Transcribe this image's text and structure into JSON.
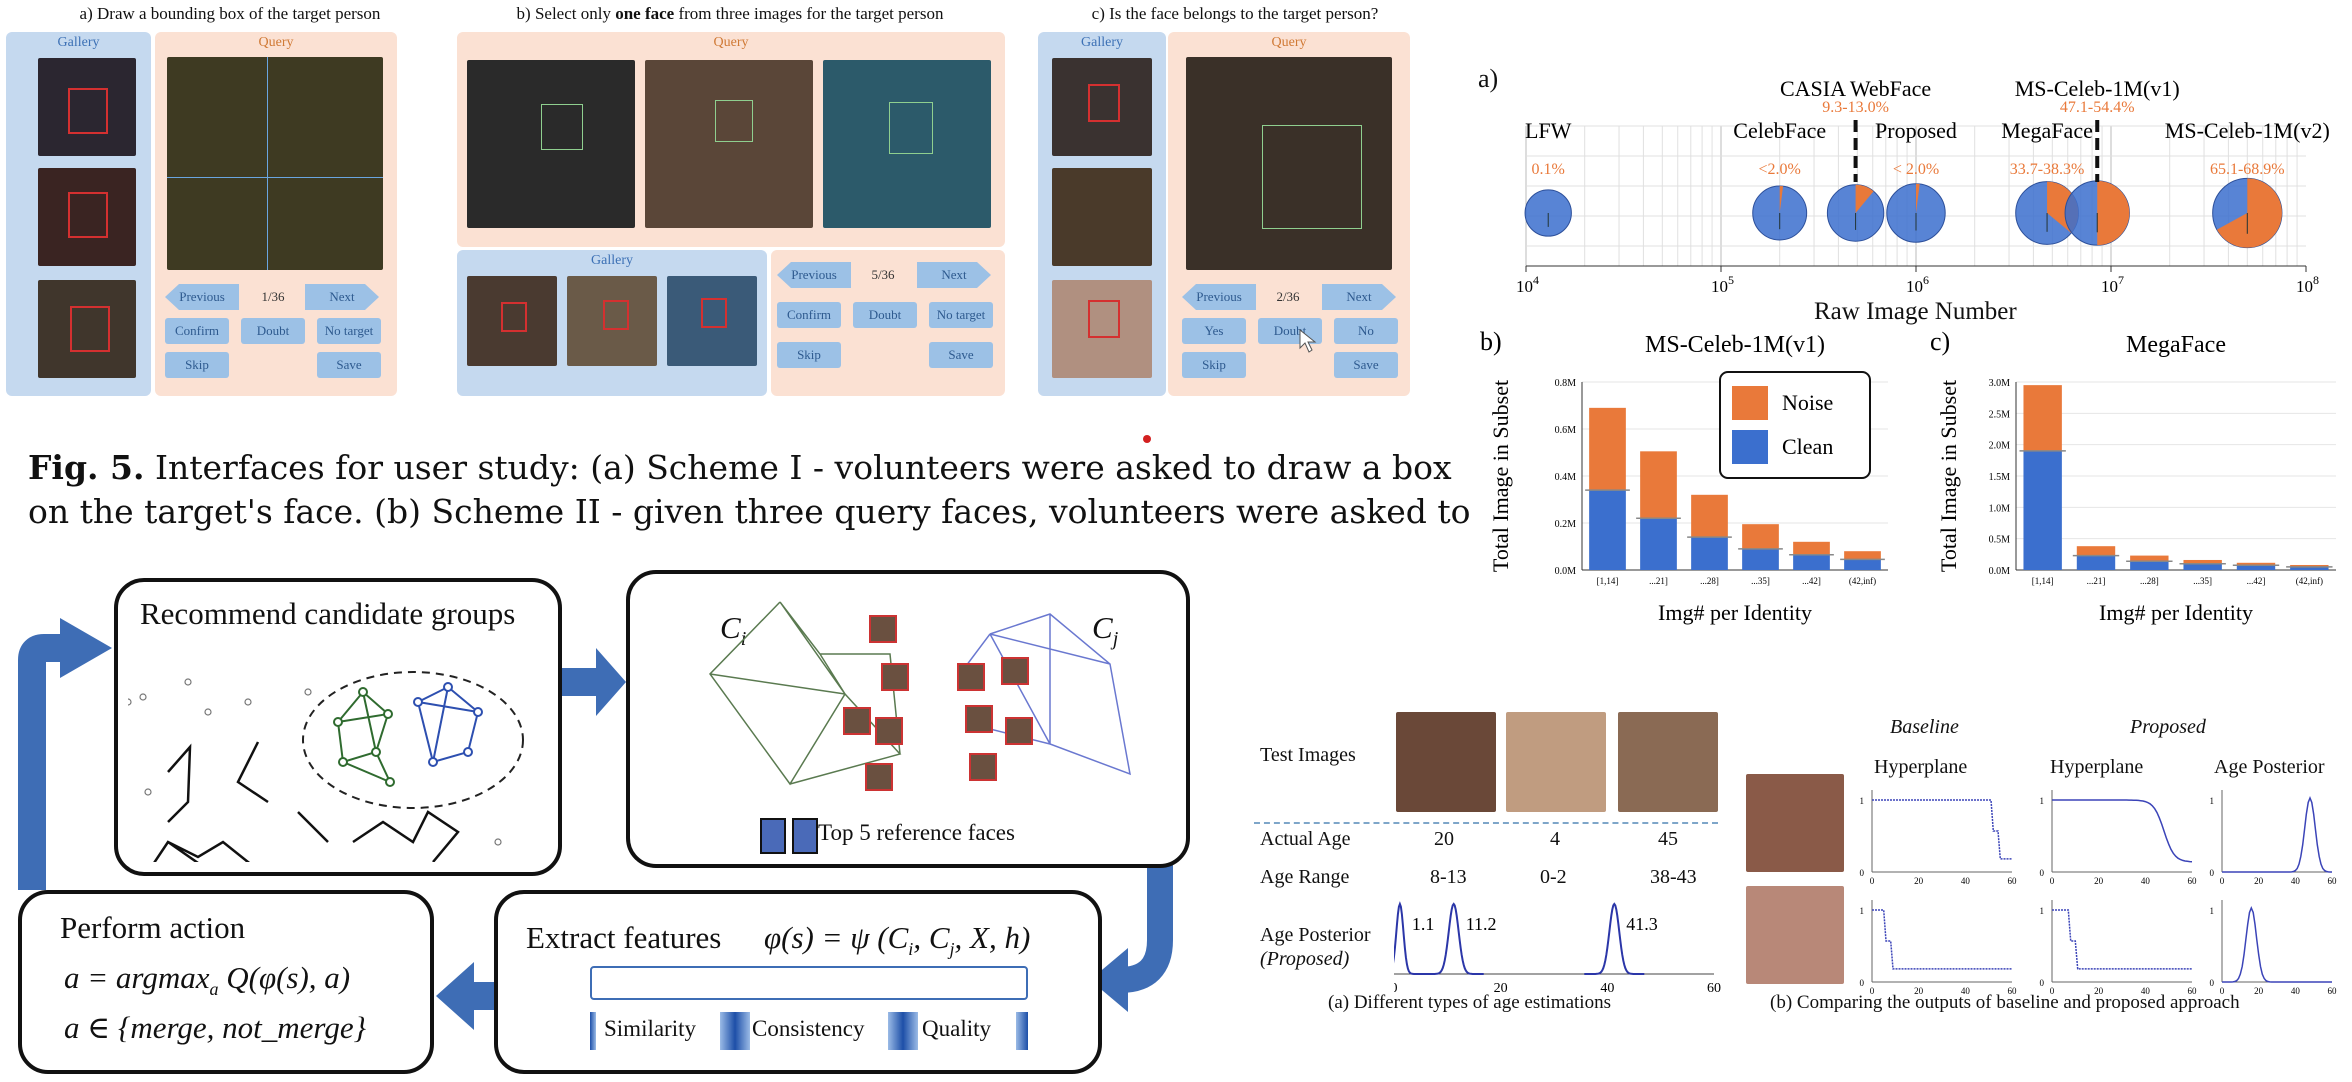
{
  "fig5_panels": {
    "a": {
      "title": "a) Draw a bounding box of the target person",
      "gallery_label": "Gallery",
      "query_label": "Query",
      "prev": "Previous",
      "counter": "1/36",
      "next": "Next",
      "confirm": "Confirm",
      "doubt": "Doubt",
      "no_target": "No target",
      "skip": "Skip",
      "save": "Save"
    },
    "b": {
      "title_pre": "b) Select only ",
      "title_bold": "one face",
      "title_post": " from three images for the target person",
      "query_label": "Query",
      "gallery_label": "Gallery",
      "prev": "Previous",
      "counter": "5/36",
      "next": "Next",
      "confirm": "Confirm",
      "doubt": "Doubt",
      "no_target": "No target",
      "skip": "Skip",
      "save": "Save"
    },
    "c": {
      "title": "c) Is the face belongs to the target person?",
      "gallery_label": "Gallery",
      "query_label": "Query",
      "prev": "Previous",
      "counter": "2/36",
      "next": "Next",
      "yes": "Yes",
      "doubt": "Doubt",
      "no": "No",
      "skip": "Skip",
      "save": "Save"
    }
  },
  "caption": {
    "label": "Fig. 5.",
    "line1": " Interfaces for user study: (a) Scheme I - volunteers were asked to draw a box",
    "line2": "on the target's face. (b) Scheme II - given three query faces, volunteers were asked to"
  },
  "pipeline": {
    "recommend": "Recommend candidate groups",
    "ci": "C",
    "ci_sub": "i",
    "cj": "C",
    "cj_sub": "j",
    "top5": "Top 5 reference faces",
    "perform": "Perform action",
    "eq1": "a = argmax",
    "eq1_sub": "a",
    "eq1_rest": " Q(φ(s), a)",
    "eq2": "a ∈ {merge, not_merge}",
    "extract": "Extract features",
    "phi": "φ(s) = ψ (C",
    "phi_sub_i": "i",
    "phi_mid": ", C",
    "phi_sub_j": "j",
    "phi_end": ", X, h)",
    "sim": "Similarity",
    "cons": "Consistency",
    "qual": "Quality"
  },
  "chart_data": [
    {
      "id": "a",
      "type": "scatter",
      "panel_label": "a)",
      "xlabel": "Raw Image Number",
      "xscale": "log",
      "xlim": [
        10000,
        100000000
      ],
      "x_ticks": [
        "10",
        "10",
        "10",
        "10",
        "10"
      ],
      "x_tick_exps": [
        "4",
        "5",
        "6",
        "7",
        "8"
      ],
      "points": [
        {
          "name": "LFW",
          "x": 13000,
          "noise": "0.1%",
          "noise_frac": 0.001
        },
        {
          "name": "CelebFace",
          "x": 200000,
          "noise": "<2.0%",
          "noise_frac": 0.02
        },
        {
          "name": "CASIA WebFace",
          "x": 490000,
          "noise": "9.3-13.0%",
          "noise_frac": 0.11
        },
        {
          "name": "Proposed",
          "x": 1000000,
          "noise": "< 2.0%",
          "noise_frac": 0.02
        },
        {
          "name": "MegaFace",
          "x": 4700000,
          "noise": "33.7-38.3%",
          "noise_frac": 0.36
        },
        {
          "name": "MS-Celeb-1M(v1)",
          "x": 8500000,
          "noise": "47.1-54.4%",
          "noise_frac": 0.5
        },
        {
          "name": "MS-Celeb-1M(v2)",
          "x": 50000000,
          "noise": "65.1-68.9%",
          "noise_frac": 0.67
        }
      ]
    },
    {
      "id": "b",
      "type": "bar",
      "panel_label": "b)",
      "title": "MS-Celeb-1M(v1)",
      "ylabel": "Total Image in Subset",
      "xlabel": "Img# per Identity",
      "categories": [
        "[1,14]",
        "...21]",
        "...28]",
        "...35]",
        "...42]",
        "(42,inf)"
      ],
      "ylim": [
        0,
        800000
      ],
      "y_ticks": [
        "0.0M",
        "0.2M",
        "0.4M",
        "0.6M",
        "0.8M"
      ],
      "series": [
        {
          "name": "Clean",
          "values": [
            340000,
            220000,
            140000,
            90000,
            65000,
            45000
          ]
        },
        {
          "name": "Noise",
          "values": [
            350000,
            285000,
            180000,
            105000,
            55000,
            35000
          ]
        }
      ],
      "legend": [
        "Noise",
        "Clean"
      ]
    },
    {
      "id": "c",
      "type": "bar",
      "panel_label": "c)",
      "title": "MegaFace",
      "ylabel": "Total Image in Subset",
      "xlabel": "Img# per Identity",
      "categories": [
        "[1,14]",
        "...21]",
        "...28]",
        "...35]",
        "...42]",
        "(42,inf)"
      ],
      "ylim": [
        0,
        3000000
      ],
      "y_ticks": [
        "0.0M",
        "0.5M",
        "1.0M",
        "1.5M",
        "2.0M",
        "2.5M",
        "3.0M"
      ],
      "series": [
        {
          "name": "Clean",
          "values": [
            1900000,
            230000,
            140000,
            100000,
            75000,
            50000
          ]
        },
        {
          "name": "Noise",
          "values": [
            1050000,
            150000,
            90000,
            60000,
            40000,
            30000
          ]
        }
      ]
    }
  ],
  "age_table": {
    "test_images": "Test Images",
    "actual_age": "Actual Age",
    "age_range": "Age Range",
    "posterior": "Age Posterior",
    "proposed_paren": "(Proposed)",
    "ages": [
      "20",
      "4",
      "45"
    ],
    "ranges": [
      "8-13",
      "0-2",
      "38-43"
    ],
    "peaks": [
      "11.2",
      "1.1",
      "41.3"
    ],
    "axis": [
      "0",
      "20",
      "40",
      "60"
    ],
    "caption": "(a) Different types of age estimations"
  },
  "compare": {
    "baseline": "Baseline",
    "proposed": "Proposed",
    "hyper1": "Hyperplane",
    "hyper2": "Hyperplane",
    "age_post": "Age Posterior",
    "caption": "(b) Comparing the outputs of baseline and proposed approach",
    "ticks_x": [
      "0",
      "20",
      "40",
      "60"
    ],
    "ticks_y": [
      "0",
      "1"
    ]
  },
  "colors": {
    "noise": "#e9793a",
    "clean": "#3b6fce",
    "gallery": "#c5d9ef",
    "query": "#fbe1d3",
    "arrow": "#3e6db5"
  }
}
